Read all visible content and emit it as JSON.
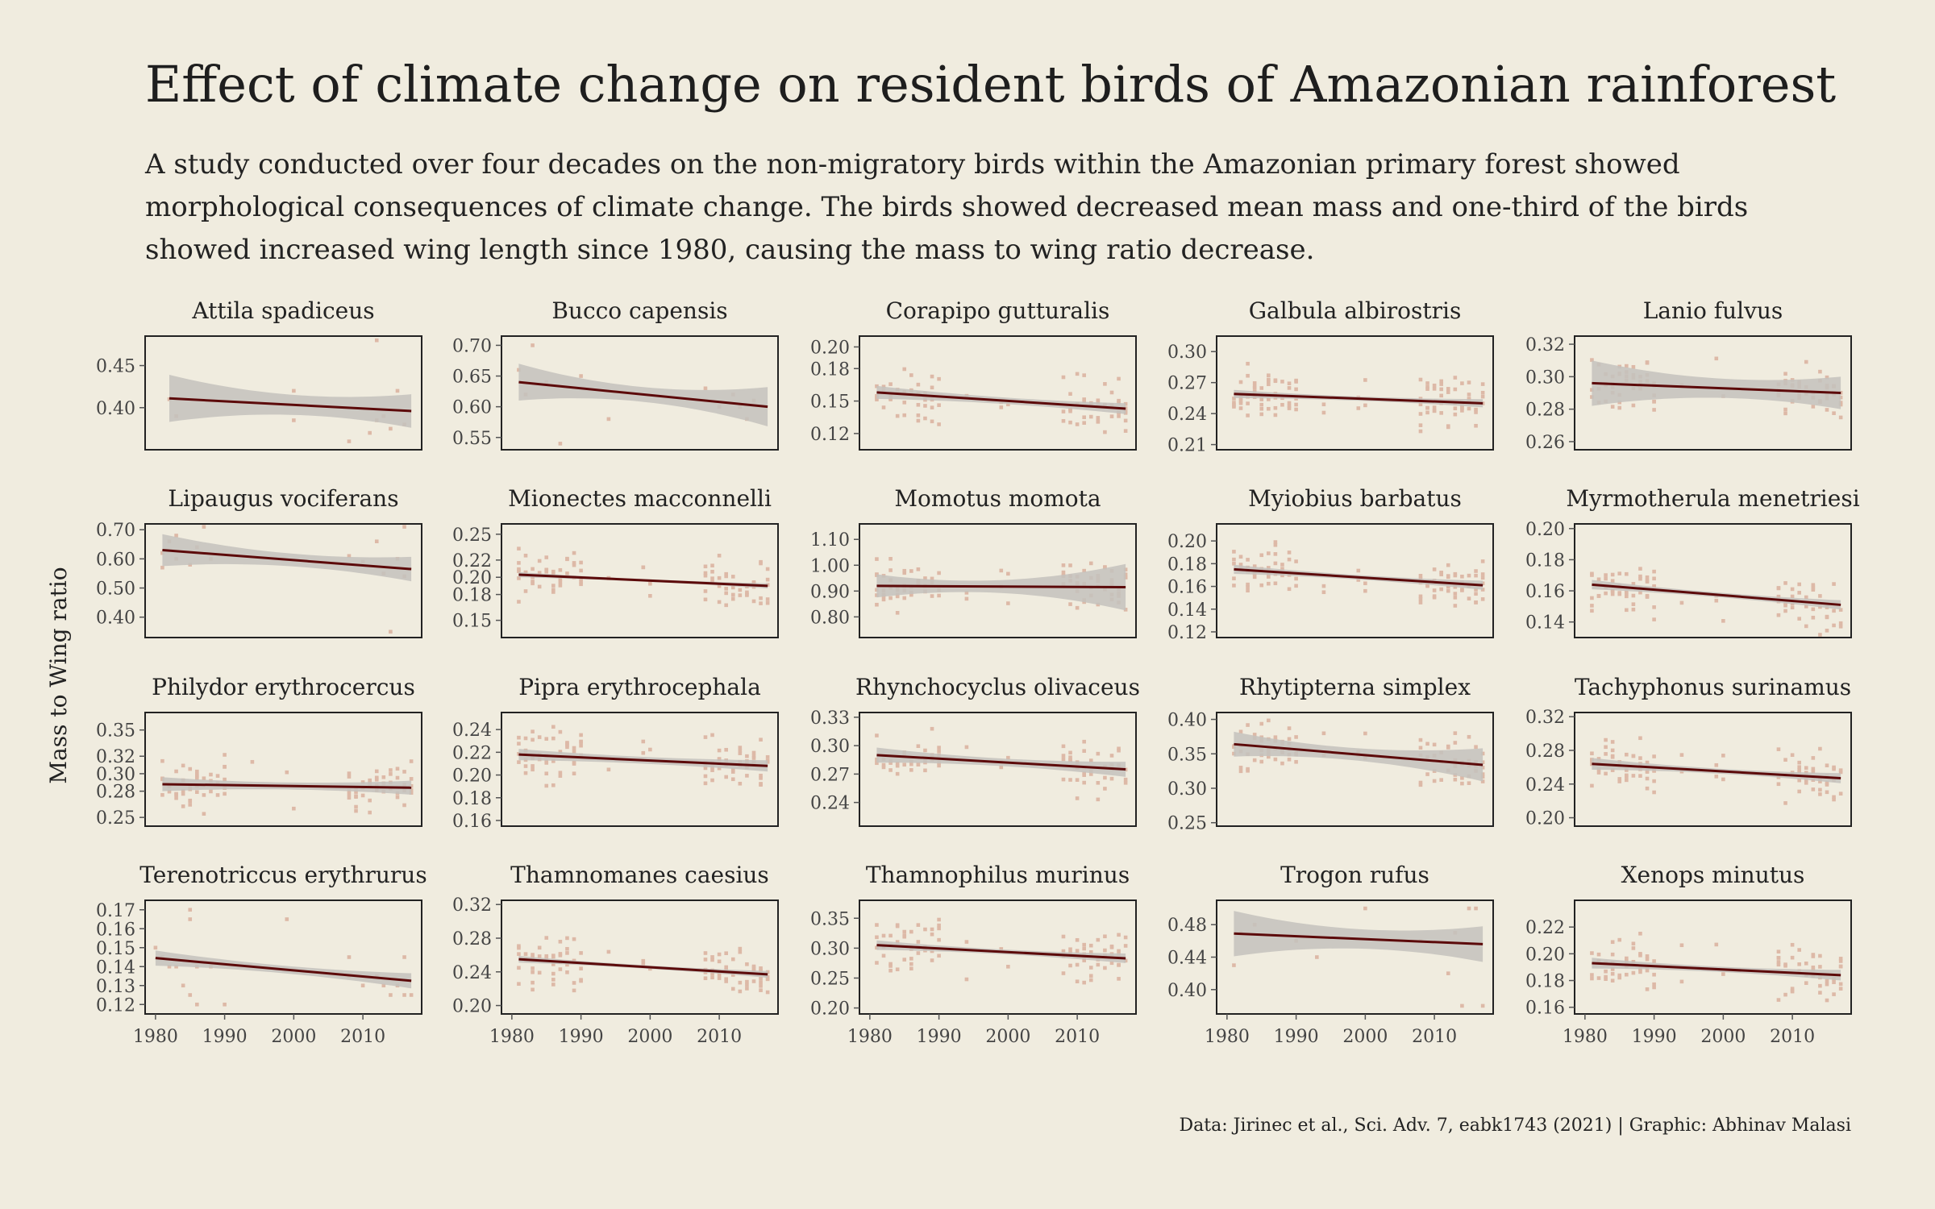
{
  "title": "Effect of climate change on resident birds of Amazonian rainforest",
  "subtitle": "A study conducted over four decades on the non-migratory birds within the Amazonian primary forest showed morphological consequences of climate change. The birds showed decreased mean mass and one-third of the birds showed increased wing length since 1980, causing the mass to wing ratio decrease.",
  "caption": "Data: Jirinec et al., Sci. Adv. 7, eabk1743 (2021) | Graphic: Abhinav Malasi",
  "colors": {
    "background": "#f0ecdf",
    "points": "#ddb9a7",
    "line": "#5c0a0a",
    "ribbon": "#c4c2bd"
  },
  "chart_data": {
    "type": "scatter",
    "ylabel": "Mass to Wing ratio",
    "x_ticks": [
      1980,
      1990,
      2000,
      2010
    ],
    "xlim": [
      1978.5,
      2018.5
    ],
    "panels": [
      {
        "name": "Attila spadiceus",
        "ylim": [
          0.35,
          0.485
        ],
        "yticks": [
          0.4,
          0.45
        ],
        "xr": [
          1982,
          2017
        ],
        "fit": [
          0.411,
          0.396
        ],
        "band": [
          0.028,
          0.012,
          0.02
        ],
        "points": [
          [
            1982,
            0.41
          ],
          [
            1983,
            0.39
          ],
          [
            2000,
            0.42
          ],
          [
            2000,
            0.385
          ],
          [
            2008,
            0.36
          ],
          [
            2011,
            0.37
          ],
          [
            2012,
            0.48
          ],
          [
            2012,
            0.385
          ],
          [
            2013,
            0.39
          ],
          [
            2014,
            0.375
          ],
          [
            2015,
            0.42
          ],
          [
            2016,
            0.38
          ]
        ]
      },
      {
        "name": "Bucco capensis",
        "ylim": [
          0.53,
          0.715
        ],
        "yticks": [
          0.55,
          0.6,
          0.65,
          0.7
        ],
        "xr": [
          1981,
          2017
        ],
        "fit": [
          0.64,
          0.6
        ],
        "band": [
          0.03,
          0.012,
          0.032
        ],
        "points": [
          [
            1981,
            0.66
          ],
          [
            1982,
            0.62
          ],
          [
            1983,
            0.7
          ],
          [
            1985,
            0.64
          ],
          [
            1987,
            0.54
          ],
          [
            1990,
            0.65
          ],
          [
            1994,
            0.58
          ],
          [
            2008,
            0.63
          ],
          [
            2010,
            0.6
          ],
          [
            2012,
            0.62
          ],
          [
            2013,
            0.6
          ],
          [
            2014,
            0.58
          ],
          [
            2015,
            0.61
          ]
        ]
      },
      {
        "name": "Corapipo gutturalis",
        "ylim": [
          0.105,
          0.21
        ],
        "yticks": [
          0.12,
          0.15,
          0.18,
          0.2
        ],
        "xr": [
          1981,
          2017
        ],
        "fit": [
          0.158,
          0.143
        ],
        "band": [
          0.006,
          0.003,
          0.005
        ]
      },
      {
        "name": "Galbula albirostris",
        "ylim": [
          0.205,
          0.315
        ],
        "yticks": [
          0.21,
          0.24,
          0.27,
          0.3
        ],
        "xr": [
          1981,
          2017
        ],
        "fit": [
          0.259,
          0.25
        ],
        "band": [
          0.004,
          0.002,
          0.004
        ]
      },
      {
        "name": "Lanio fulvus",
        "ylim": [
          0.255,
          0.325
        ],
        "yticks": [
          0.26,
          0.28,
          0.3,
          0.32
        ],
        "xr": [
          1981,
          2017
        ],
        "fit": [
          0.296,
          0.29
        ],
        "band": [
          0.014,
          0.006,
          0.01
        ]
      },
      {
        "name": "Lipaugus vociferans",
        "ylim": [
          0.33,
          0.72
        ],
        "yticks": [
          0.4,
          0.5,
          0.6,
          0.7
        ],
        "xr": [
          1981,
          2017
        ],
        "fit": [
          0.63,
          0.565
        ],
        "band": [
          0.055,
          0.022,
          0.042
        ],
        "points": [
          [
            1981,
            0.62
          ],
          [
            1981,
            0.57
          ],
          [
            1982,
            0.66
          ],
          [
            1983,
            0.68
          ],
          [
            1983,
            0.6
          ],
          [
            1985,
            0.58
          ],
          [
            1986,
            0.64
          ],
          [
            1987,
            0.71
          ],
          [
            1988,
            0.6
          ],
          [
            2008,
            0.61
          ],
          [
            2010,
            0.59
          ],
          [
            2012,
            0.66
          ],
          [
            2013,
            0.55
          ],
          [
            2014,
            0.35
          ],
          [
            2015,
            0.6
          ],
          [
            2016,
            0.54
          ],
          [
            2016,
            0.71
          ]
        ]
      },
      {
        "name": "Mionectes macconnelli",
        "ylim": [
          0.13,
          0.262
        ],
        "yticks": [
          0.15,
          0.18,
          0.2,
          0.22,
          0.25
        ],
        "xr": [
          1981,
          2017
        ],
        "fit": [
          0.203,
          0.19
        ],
        "band": [
          0.003,
          0.0015,
          0.003
        ]
      },
      {
        "name": "Momotus momota",
        "ylim": [
          0.72,
          1.16
        ],
        "yticks": [
          0.8,
          0.9,
          1.0,
          1.1
        ],
        "xr": [
          1981,
          2017
        ],
        "fit": [
          0.92,
          0.915
        ],
        "band": [
          0.045,
          0.025,
          0.09
        ]
      },
      {
        "name": "Myiobius barbatus",
        "ylim": [
          0.115,
          0.215
        ],
        "yticks": [
          0.12,
          0.14,
          0.16,
          0.18,
          0.2
        ],
        "xr": [
          1981,
          2017
        ],
        "fit": [
          0.175,
          0.161
        ],
        "band": [
          0.004,
          0.002,
          0.004
        ]
      },
      {
        "name": "Myrmotherula menetriesi",
        "ylim": [
          0.13,
          0.203
        ],
        "yticks": [
          0.14,
          0.16,
          0.18,
          0.2
        ],
        "xr": [
          1981,
          2017
        ],
        "fit": [
          0.164,
          0.151
        ],
        "band": [
          0.003,
          0.0015,
          0.003
        ]
      },
      {
        "name": "Philydor erythrocercus",
        "ylim": [
          0.24,
          0.37
        ],
        "yticks": [
          0.25,
          0.28,
          0.3,
          0.32,
          0.35
        ],
        "xr": [
          1981,
          2017
        ],
        "fit": [
          0.288,
          0.284
        ],
        "band": [
          0.008,
          0.004,
          0.008
        ]
      },
      {
        "name": "Pipra erythrocephala",
        "ylim": [
          0.155,
          0.255
        ],
        "yticks": [
          0.16,
          0.18,
          0.2,
          0.22,
          0.24
        ],
        "xr": [
          1981,
          2017
        ],
        "fit": [
          0.218,
          0.208
        ],
        "band": [
          0.005,
          0.003,
          0.005
        ]
      },
      {
        "name": "Rhynchocyclus olivaceus",
        "ylim": [
          0.215,
          0.335
        ],
        "yticks": [
          0.24,
          0.27,
          0.3,
          0.33
        ],
        "xr": [
          1981,
          2017
        ],
        "fit": [
          0.29,
          0.275
        ],
        "band": [
          0.008,
          0.004,
          0.008
        ]
      },
      {
        "name": "Rhytipterna simplex",
        "ylim": [
          0.245,
          0.41
        ],
        "yticks": [
          0.25,
          0.3,
          0.35,
          0.4
        ],
        "xr": [
          1981,
          2017
        ],
        "fit": [
          0.364,
          0.334
        ],
        "band": [
          0.018,
          0.009,
          0.024
        ]
      },
      {
        "name": "Tachyphonus surinamus",
        "ylim": [
          0.19,
          0.325
        ],
        "yticks": [
          0.2,
          0.24,
          0.28,
          0.32
        ],
        "xr": [
          1981,
          2017
        ],
        "fit": [
          0.264,
          0.247
        ],
        "band": [
          0.007,
          0.003,
          0.006
        ]
      },
      {
        "name": "Terenotriccus erythrurus",
        "ylim": [
          0.115,
          0.175
        ],
        "yticks": [
          0.12,
          0.13,
          0.14,
          0.15,
          0.16,
          0.17
        ],
        "xr": [
          1980,
          2017
        ],
        "fit": [
          0.1445,
          0.1325
        ],
        "band": [
          0.004,
          0.002,
          0.004
        ],
        "points": [
          [
            1980,
            0.15
          ],
          [
            1981,
            0.145
          ],
          [
            1982,
            0.14
          ],
          [
            1983,
            0.14
          ],
          [
            1984,
            0.13
          ],
          [
            1985,
            0.17
          ],
          [
            1985,
            0.165
          ],
          [
            1985,
            0.125
          ],
          [
            1986,
            0.14
          ],
          [
            1986,
            0.12
          ],
          [
            1988,
            0.14
          ],
          [
            1990,
            0.12
          ],
          [
            1999,
            0.165
          ],
          [
            2008,
            0.135
          ],
          [
            2008,
            0.145
          ],
          [
            2010,
            0.13
          ],
          [
            2012,
            0.135
          ],
          [
            2013,
            0.13
          ],
          [
            2014,
            0.125
          ],
          [
            2015,
            0.13
          ],
          [
            2016,
            0.125
          ],
          [
            2016,
            0.145
          ],
          [
            2017,
            0.125
          ]
        ]
      },
      {
        "name": "Thamnomanes caesius",
        "ylim": [
          0.19,
          0.325
        ],
        "yticks": [
          0.2,
          0.24,
          0.28,
          0.32
        ],
        "xr": [
          1981,
          2017
        ],
        "fit": [
          0.255,
          0.237
        ],
        "band": [
          0.004,
          0.002,
          0.004
        ]
      },
      {
        "name": "Thamnophilus murinus",
        "ylim": [
          0.19,
          0.38
        ],
        "yticks": [
          0.2,
          0.25,
          0.3,
          0.35
        ],
        "xr": [
          1981,
          2017
        ],
        "fit": [
          0.305,
          0.283
        ],
        "band": [
          0.008,
          0.004,
          0.008
        ]
      },
      {
        "name": "Trogon rufus",
        "ylim": [
          0.37,
          0.51
        ],
        "yticks": [
          0.4,
          0.44,
          0.48
        ],
        "xr": [
          1981,
          2017
        ],
        "fit": [
          0.469,
          0.456
        ],
        "band": [
          0.028,
          0.012,
          0.022
        ],
        "points": [
          [
            1981,
            0.43
          ],
          [
            1982,
            0.47
          ],
          [
            1984,
            0.48
          ],
          [
            1990,
            0.46
          ],
          [
            1993,
            0.44
          ],
          [
            2000,
            0.5
          ],
          [
            2008,
            0.46
          ],
          [
            2012,
            0.42
          ],
          [
            2013,
            0.47
          ],
          [
            2014,
            0.38
          ],
          [
            2015,
            0.5
          ],
          [
            2016,
            0.5
          ],
          [
            2017,
            0.38
          ]
        ]
      },
      {
        "name": "Xenops minutus",
        "ylim": [
          0.155,
          0.24
        ],
        "yticks": [
          0.16,
          0.18,
          0.2,
          0.22
        ],
        "xr": [
          1981,
          2017
        ],
        "fit": [
          0.193,
          0.184
        ],
        "band": [
          0.004,
          0.002,
          0.004
        ]
      }
    ]
  }
}
